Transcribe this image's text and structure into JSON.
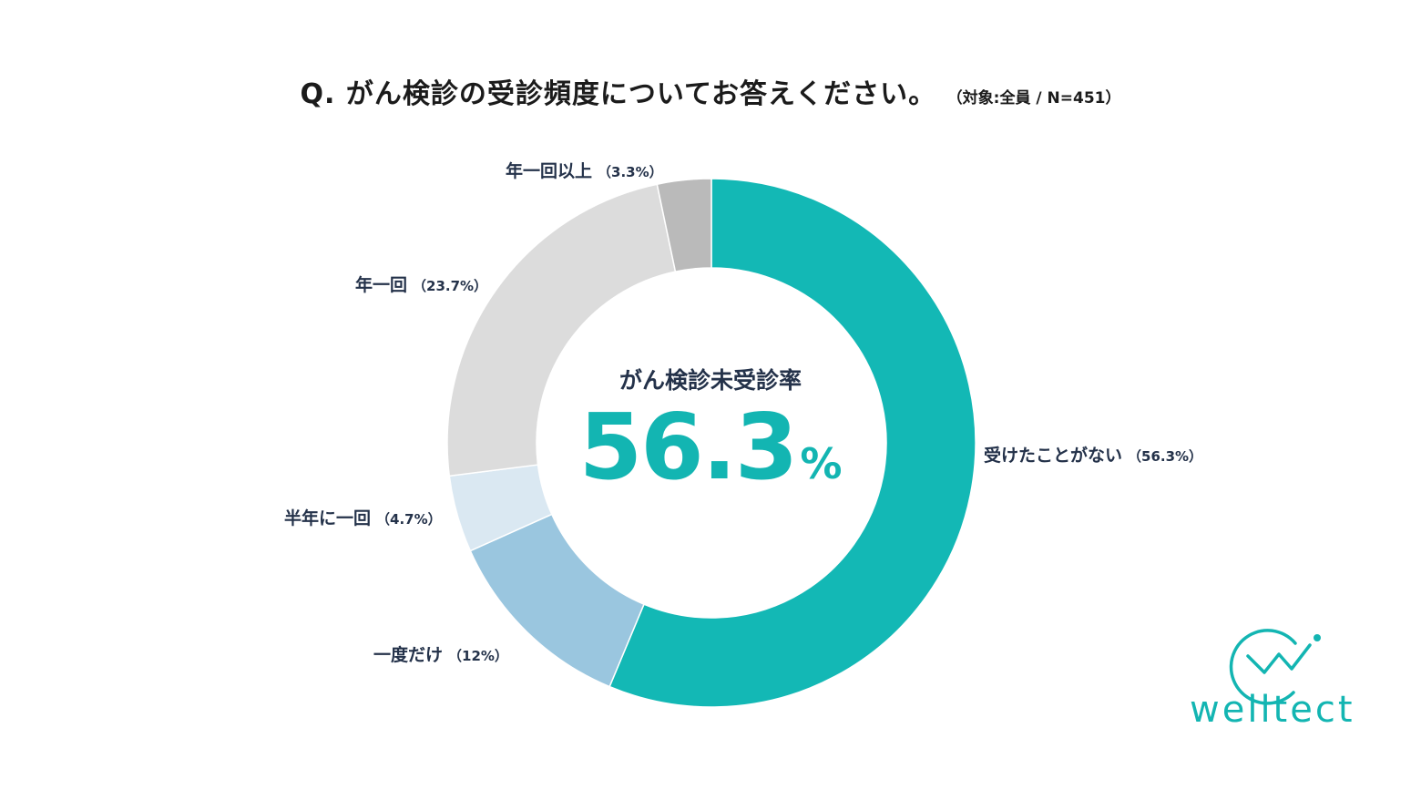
{
  "header": {
    "title": "Q. がん検診の受診頻度についてお答えください。",
    "subtitle": "（対象:全員 / N=451）"
  },
  "chart_data": {
    "type": "pie",
    "donut": true,
    "start": "top",
    "direction": "clockwise",
    "slices": [
      {
        "label": "受けたことがない",
        "pct_label": "（56.3%）",
        "value": 56.3,
        "color": "#13b8b5"
      },
      {
        "label": "一度だけ",
        "pct_label": "（12%）",
        "value": 12,
        "color": "#9ac6df"
      },
      {
        "label": "半年に一回",
        "pct_label": "（4.7%）",
        "value": 4.7,
        "color": "#dae8f2"
      },
      {
        "label": "年一回",
        "pct_label": "（23.7%）",
        "value": 23.7,
        "color": "#dcdcdc"
      },
      {
        "label": "年一回以上",
        "pct_label": "（3.3%）",
        "value": 3.3,
        "color": "#bababa"
      }
    ],
    "center": {
      "caption": "がん検診未受診率",
      "number": "56.3",
      "unit": "%"
    }
  },
  "logo": {
    "text": "welltect",
    "color": "#13b5b2"
  }
}
